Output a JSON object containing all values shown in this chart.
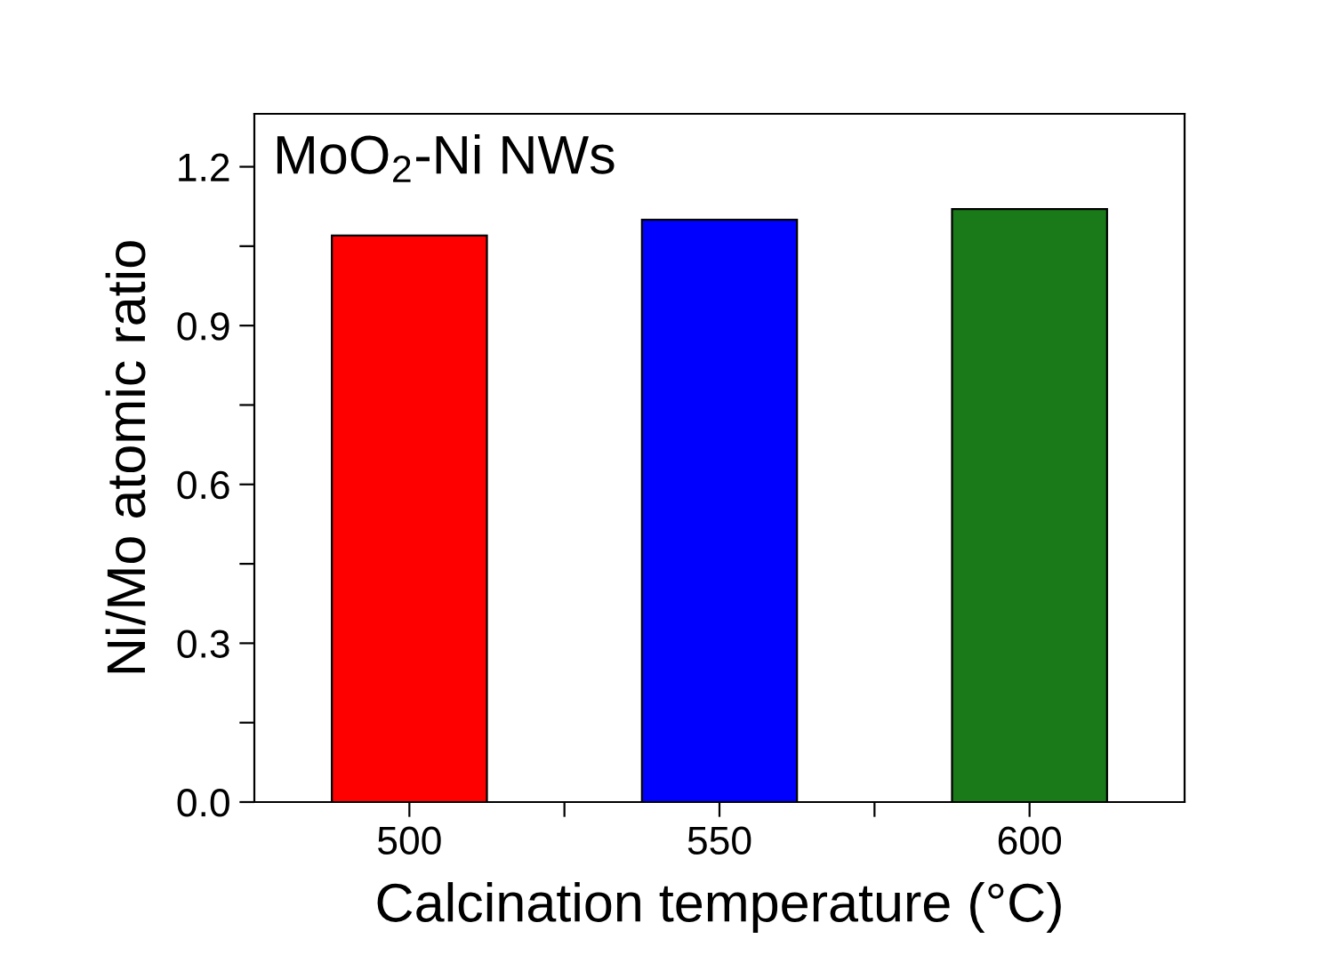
{
  "chart_data": {
    "type": "bar",
    "title": "MoO$_{2}$-Ni NWs",
    "xlabel": "Calcination temperature (°C)",
    "ylabel": "Ni/Mo atomic ratio",
    "x": [
      500,
      550,
      600
    ],
    "values": [
      1.07,
      1.1,
      1.12
    ],
    "colors": [
      "#ff0000",
      "#0000ff",
      "#1a7a1a"
    ],
    "xlim": [
      475,
      625
    ],
    "xticks": [
      500,
      {
        "value": 525,
        "label": null
      },
      550,
      {
        "value": 575,
        "label": null
      },
      600
    ],
    "ylim": [
      0,
      1.3
    ],
    "yticks": [
      {
        "value": 0,
        "label": "0.0"
      },
      {
        "value": 0.15,
        "label": null
      },
      0.3,
      {
        "value": 0.45,
        "label": null
      },
      0.6,
      {
        "value": 0.75,
        "label": null
      },
      0.9,
      {
        "value": 1.05,
        "label": null
      },
      1.2
    ],
    "grid": false,
    "legend": false
  }
}
